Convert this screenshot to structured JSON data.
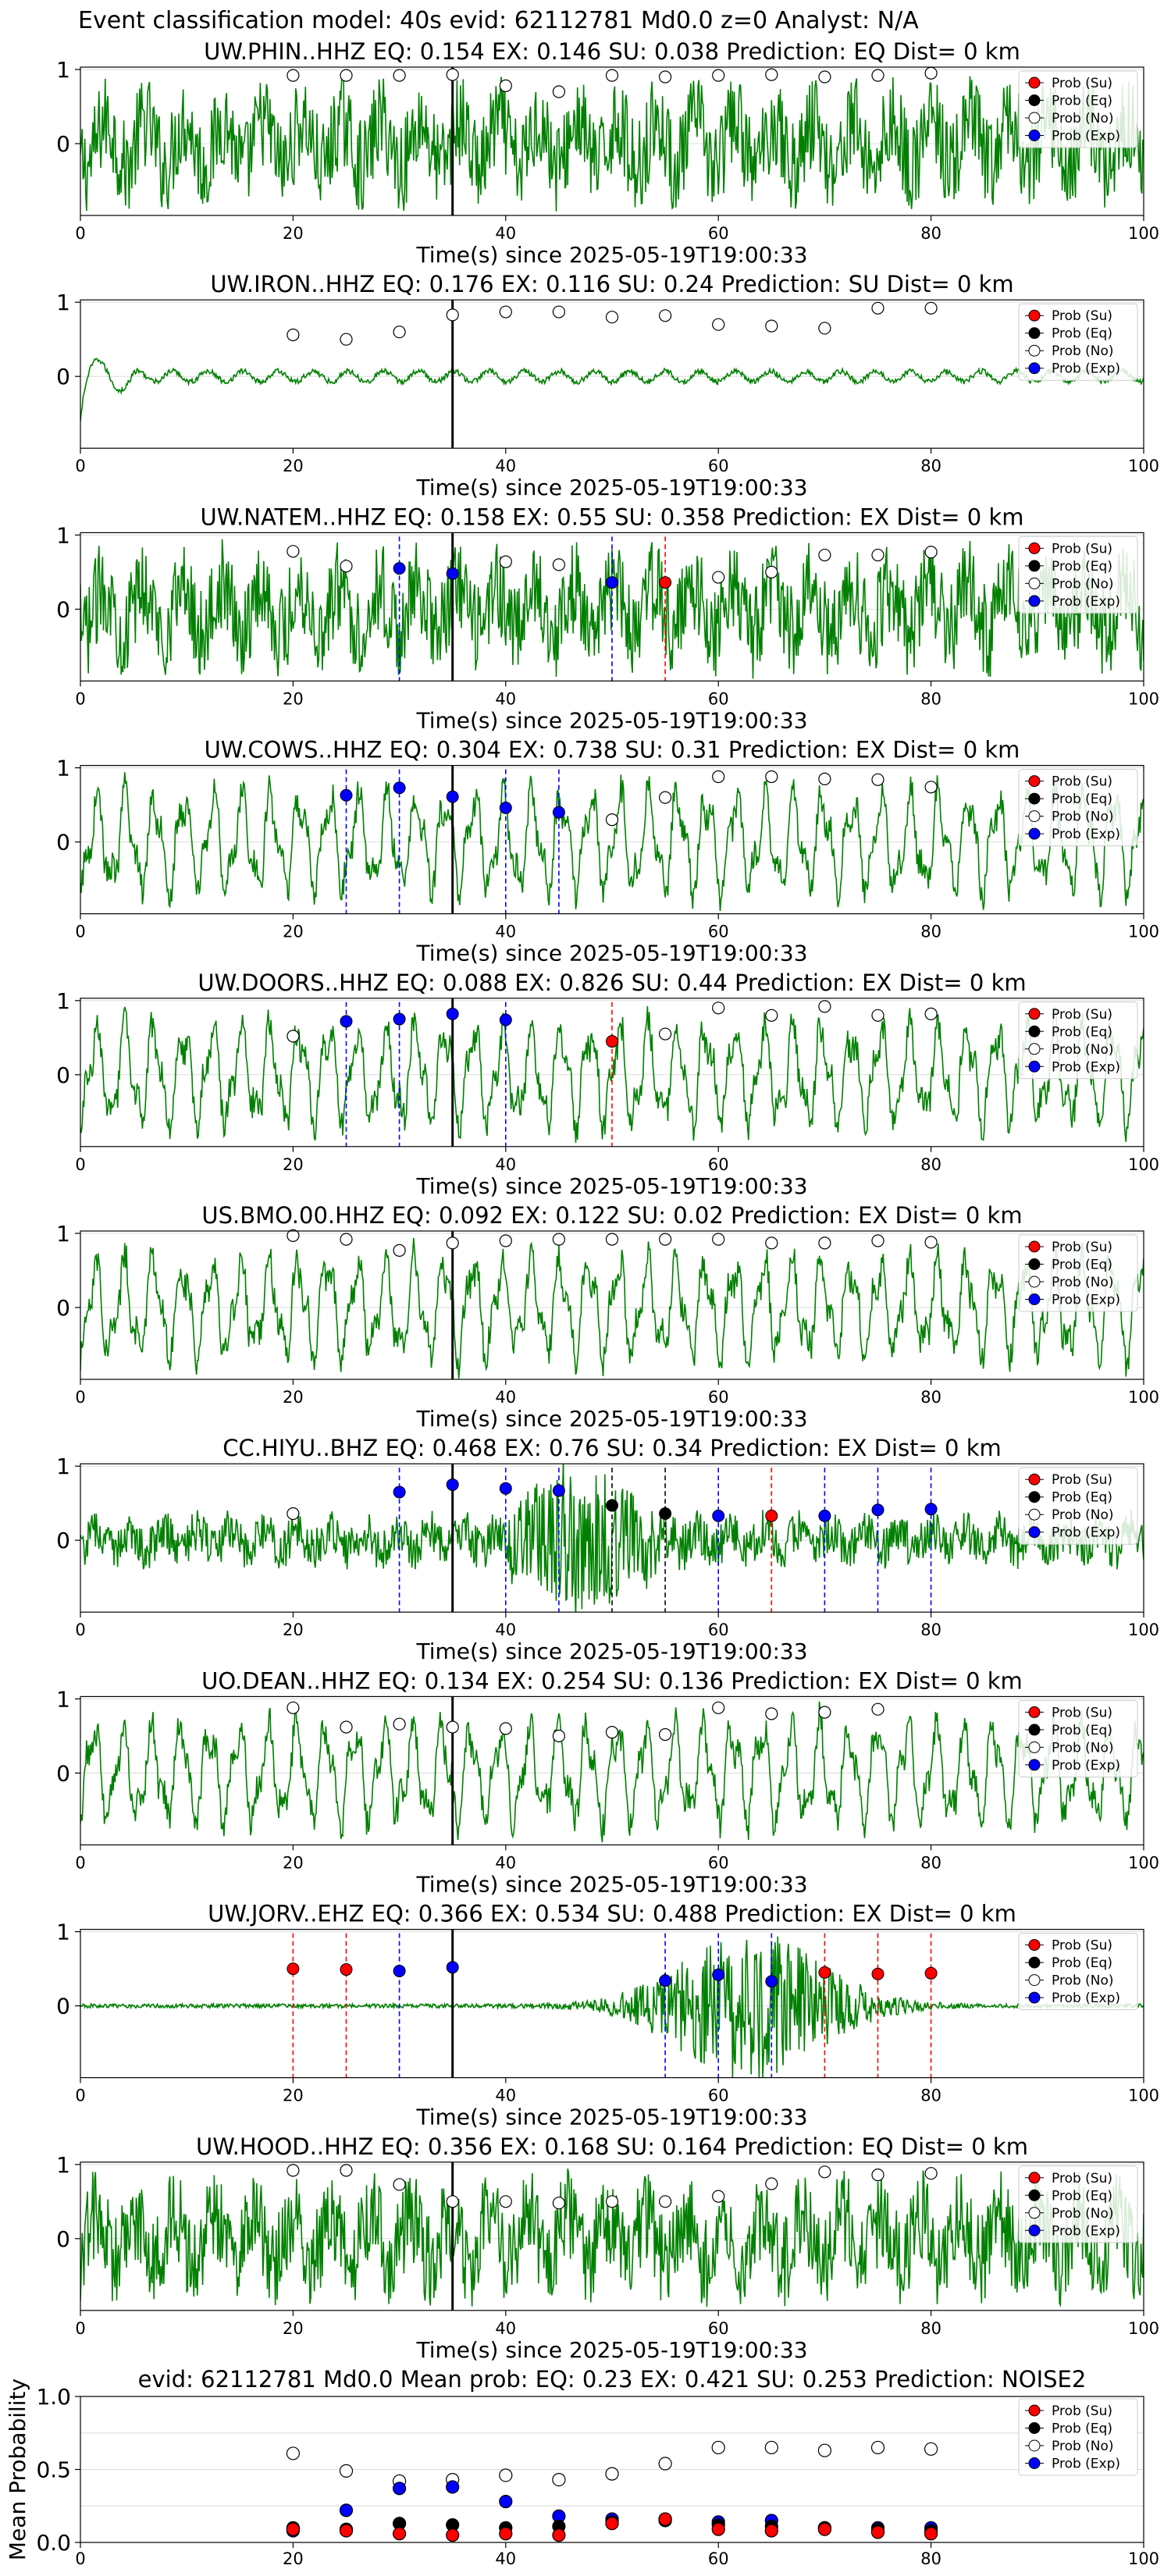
{
  "suptitle": "Event classification model: 40s evid: 62112781 Md0.0 z=0 Analyst: N/A",
  "legend_labels": [
    "Prob (Su)",
    "Prob (Eq)",
    "Prob (No)",
    "Prob (Exp)"
  ],
  "colors": {
    "waveform": "#008000",
    "su": "#ff0000",
    "eq": "#000000",
    "no": "#ffffff",
    "exp": "#0000ff",
    "pick_line": "#000000",
    "grid": "#dcdcdc"
  },
  "chart_data": {
    "type": "line",
    "window_times": [
      20,
      25,
      30,
      35,
      40,
      45,
      50,
      55,
      60,
      65,
      70,
      75,
      80
    ],
    "x_ticks": [
      0,
      20,
      40,
      60,
      80,
      100
    ],
    "y_ticks": [
      0,
      1
    ],
    "xlim": [
      0,
      100
    ],
    "pick_time": 35,
    "panels": [
      {
        "title": "UW.PHIN..HHZ   EQ: 0.154  EX: 0.146  SU: 0.038   Prediction: EQ    Dist= 0 km",
        "xlabel": "Time(s) since 2025-05-19T19:00:33",
        "waveform": "noisy",
        "prob_no": [
          0.92,
          0.92,
          0.92,
          0.93,
          0.78,
          0.7,
          0.92,
          0.9,
          0.92,
          0.93,
          0.9,
          0.92,
          0.95
        ],
        "markers": []
      },
      {
        "title": "UW.IRON..HHZ   EQ: 0.176  EX: 0.116  SU: 0.24   Prediction: SU    Dist= 0 km",
        "xlabel": "Time(s) since 2025-05-19T19:00:33",
        "waveform": "quiet",
        "prob_no": [
          0.56,
          0.5,
          0.6,
          0.83,
          0.87,
          0.87,
          0.8,
          0.82,
          0.7,
          0.68,
          0.65,
          0.92,
          0.92
        ],
        "markers": []
      },
      {
        "title": "UW.NATEM..HHZ   EQ: 0.158  EX: 0.55  SU: 0.358   Prediction: EX    Dist= 0 km",
        "xlabel": "Time(s) since 2025-05-19T19:00:33",
        "waveform": "noisy",
        "prob_no": [
          0.78,
          0.58,
          null,
          null,
          0.64,
          0.6,
          null,
          null,
          0.43,
          0.5,
          0.73,
          0.73,
          0.77
        ],
        "markers": [
          {
            "t": 30,
            "cls": "exp",
            "p": 0.55
          },
          {
            "t": 35,
            "cls": "exp",
            "p": 0.48
          },
          {
            "t": 50,
            "cls": "exp",
            "p": 0.36
          },
          {
            "t": 55,
            "cls": "su",
            "p": 0.36
          }
        ]
      },
      {
        "title": "UW.COWS..HHZ   EQ: 0.304  EX: 0.738  SU: 0.31   Prediction: EX    Dist= 0 km",
        "xlabel": "Time(s) since 2025-05-19T19:00:33",
        "waveform": "oscillating",
        "prob_no": [
          null,
          null,
          null,
          null,
          null,
          null,
          0.3,
          0.6,
          0.88,
          0.88,
          0.85,
          0.84,
          0.74
        ],
        "markers": [
          {
            "t": 25,
            "cls": "exp",
            "p": 0.63
          },
          {
            "t": 30,
            "cls": "exp",
            "p": 0.73
          },
          {
            "t": 35,
            "cls": "exp",
            "p": 0.61
          },
          {
            "t": 40,
            "cls": "exp",
            "p": 0.46
          },
          {
            "t": 45,
            "cls": "exp",
            "p": 0.4
          }
        ]
      },
      {
        "title": "UW.DOORS..HHZ   EQ: 0.088  EX: 0.826  SU: 0.44   Prediction: EX    Dist= 0 km",
        "xlabel": "Time(s) since 2025-05-19T19:00:33",
        "waveform": "oscillating",
        "prob_no": [
          0.52,
          null,
          null,
          null,
          null,
          null,
          null,
          0.55,
          0.9,
          0.8,
          0.92,
          0.8,
          0.82
        ],
        "markers": [
          {
            "t": 25,
            "cls": "exp",
            "p": 0.72
          },
          {
            "t": 30,
            "cls": "exp",
            "p": 0.75
          },
          {
            "t": 35,
            "cls": "exp",
            "p": 0.82
          },
          {
            "t": 40,
            "cls": "exp",
            "p": 0.74
          },
          {
            "t": 50,
            "cls": "su",
            "p": 0.45
          }
        ]
      },
      {
        "title": "US.BMO.00.HHZ   EQ: 0.092  EX: 0.122  SU: 0.02   Prediction: EX    Dist= 0 km",
        "xlabel": "Time(s) since 2025-05-19T19:00:33",
        "waveform": "oscillating",
        "prob_no": [
          0.97,
          0.92,
          0.77,
          0.87,
          0.9,
          0.92,
          0.92,
          0.92,
          0.92,
          0.87,
          0.87,
          0.9,
          0.88
        ],
        "markers": []
      },
      {
        "title": "CC.HIYU..BHZ   EQ: 0.468  EX: 0.76  SU: 0.34   Prediction: EX    Dist= 0 km",
        "xlabel": "Time(s) since 2025-05-19T19:00:33",
        "waveform": "burst",
        "prob_no": [
          0.36,
          null,
          null,
          null,
          null,
          null,
          null,
          null,
          null,
          null,
          null,
          null,
          null
        ],
        "markers": [
          {
            "t": 30,
            "cls": "exp",
            "p": 0.65
          },
          {
            "t": 35,
            "cls": "exp",
            "p": 0.75
          },
          {
            "t": 40,
            "cls": "exp",
            "p": 0.7
          },
          {
            "t": 45,
            "cls": "exp",
            "p": 0.67
          },
          {
            "t": 50,
            "cls": "eq",
            "p": 0.47
          },
          {
            "t": 55,
            "cls": "eq",
            "p": 0.36
          },
          {
            "t": 60,
            "cls": "exp",
            "p": 0.33
          },
          {
            "t": 65,
            "cls": "su",
            "p": 0.33
          },
          {
            "t": 70,
            "cls": "exp",
            "p": 0.33
          },
          {
            "t": 75,
            "cls": "exp",
            "p": 0.41
          },
          {
            "t": 80,
            "cls": "exp",
            "p": 0.42
          }
        ]
      },
      {
        "title": "UO.DEAN..HHZ   EQ: 0.134  EX: 0.254  SU: 0.136   Prediction: EX    Dist= 0 km",
        "xlabel": "Time(s) since 2025-05-19T19:00:33",
        "waveform": "oscillating",
        "prob_no": [
          0.88,
          0.62,
          0.66,
          0.62,
          0.6,
          0.5,
          0.55,
          0.52,
          0.88,
          0.8,
          0.82,
          0.86,
          null
        ],
        "markers": []
      },
      {
        "title": "UW.JORV..EHZ   EQ: 0.366  EX: 0.534  SU: 0.488   Prediction: EX    Dist= 0 km",
        "xlabel": "Time(s) since 2025-05-19T19:00:33",
        "waveform": "event",
        "prob_no": [],
        "markers": [
          {
            "t": 20,
            "cls": "su",
            "p": 0.5
          },
          {
            "t": 25,
            "cls": "su",
            "p": 0.49
          },
          {
            "t": 30,
            "cls": "exp",
            "p": 0.47
          },
          {
            "t": 35,
            "cls": "exp",
            "p": 0.52
          },
          {
            "t": 55,
            "cls": "exp",
            "p": 0.34
          },
          {
            "t": 60,
            "cls": "exp",
            "p": 0.42
          },
          {
            "t": 65,
            "cls": "exp",
            "p": 0.33
          },
          {
            "t": 70,
            "cls": "su",
            "p": 0.45
          },
          {
            "t": 75,
            "cls": "su",
            "p": 0.43
          },
          {
            "t": 80,
            "cls": "su",
            "p": 0.44
          }
        ]
      },
      {
        "title": "UW.HOOD..HHZ   EQ: 0.356  EX: 0.168  SU: 0.164   Prediction: EQ    Dist= 0 km",
        "xlabel": "Time(s) since 2025-05-19T19:00:33",
        "waveform": "noisy",
        "prob_no": [
          0.92,
          0.92,
          0.73,
          0.5,
          0.5,
          0.48,
          0.5,
          0.5,
          0.57,
          0.74,
          0.9,
          0.86,
          0.88
        ],
        "markers": []
      }
    ],
    "mean_panel": {
      "title": "evid: 62112781  Md0.0   Mean prob:   EQ: 0.23  EX: 0.421  SU: 0.253   Prediction: NOISE2",
      "ylabel": "Mean Probability",
      "ylim": [
        0,
        1
      ],
      "y_ticks": [
        0.0,
        0.5,
        1.0
      ],
      "x_ticks": [
        0,
        20,
        40,
        60,
        80,
        100
      ],
      "no": [
        0.61,
        0.49,
        0.42,
        0.43,
        0.46,
        0.43,
        0.47,
        0.54,
        0.65,
        0.65,
        0.63,
        0.65,
        0.64
      ],
      "exp": [
        0.08,
        0.22,
        0.37,
        0.38,
        0.28,
        0.18,
        0.16,
        0.16,
        0.14,
        0.15,
        0.1,
        0.1,
        0.1
      ],
      "eq": [
        0.1,
        0.09,
        0.13,
        0.12,
        0.1,
        0.11,
        0.14,
        0.15,
        0.12,
        0.11,
        0.1,
        0.09,
        0.08
      ],
      "su": [
        0.09,
        0.08,
        0.06,
        0.05,
        0.06,
        0.05,
        0.13,
        0.16,
        0.09,
        0.08,
        0.09,
        0.07,
        0.06
      ]
    }
  }
}
